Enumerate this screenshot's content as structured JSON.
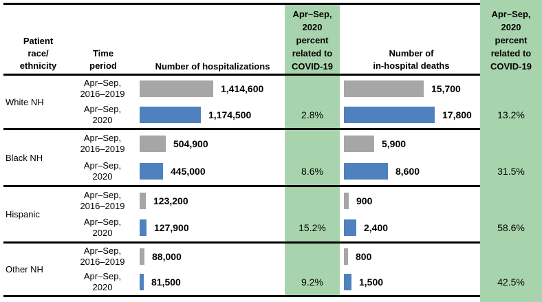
{
  "colors": {
    "bar_prior": "#A6A6A6",
    "bar_2020": "#4E81BD",
    "highlight": "#A8D4AD",
    "border": "#000000"
  },
  "header": {
    "race": [
      "Patient",
      "race/",
      "ethnicity"
    ],
    "time": [
      "Time",
      "period"
    ],
    "hosp": "Number of hospitalizations",
    "hosp_pct": [
      "Apr–Sep,",
      "2020",
      "percent",
      "related to",
      "COVID-19"
    ],
    "deaths": [
      "Number of",
      "in-hospital deaths"
    ],
    "deaths_pct": [
      "Apr–Sep,",
      "2020",
      "percent",
      "related to",
      "COVID-19"
    ]
  },
  "sections": [
    {
      "race": "White NH",
      "hosp_pct": "2.8%",
      "deaths_pct": "13.2%",
      "rows": [
        {
          "period1": "Apr–Sep,",
          "period2": "2016–2019",
          "hosp_value": 1414600,
          "hosp_label": "1,414,600",
          "deaths_value": 15700,
          "deaths_label": "15,700"
        },
        {
          "period1": "Apr–Sep,",
          "period2": "2020",
          "hosp_value": 1174500,
          "hosp_label": "1,174,500",
          "deaths_value": 17800,
          "deaths_label": "17,800"
        }
      ]
    },
    {
      "race": "Black NH",
      "hosp_pct": "8.6%",
      "deaths_pct": "31.5%",
      "rows": [
        {
          "period1": "Apr–Sep,",
          "period2": "2016–2019",
          "hosp_value": 504900,
          "hosp_label": "504,900",
          "deaths_value": 5900,
          "deaths_label": "5,900"
        },
        {
          "period1": "Apr–Sep,",
          "period2": "2020",
          "hosp_value": 445000,
          "hosp_label": "445,000",
          "deaths_value": 8600,
          "deaths_label": "8,600"
        }
      ]
    },
    {
      "race": "Hispanic",
      "hosp_pct": "15.2%",
      "deaths_pct": "58.6%",
      "rows": [
        {
          "period1": "Apr–Sep,",
          "period2": "2016–2019",
          "hosp_value": 123200,
          "hosp_label": "123,200",
          "deaths_value": 900,
          "deaths_label": "900"
        },
        {
          "period1": "Apr–Sep,",
          "period2": "2020",
          "hosp_value": 127900,
          "hosp_label": "127,900",
          "deaths_value": 2400,
          "deaths_label": "2,400"
        }
      ]
    },
    {
      "race": "Other NH",
      "hosp_pct": "9.2%",
      "deaths_pct": "42.5%",
      "rows": [
        {
          "period1": "Apr–Sep,",
          "period2": "2016–2019",
          "hosp_value": 88000,
          "hosp_label": "88,000",
          "deaths_value": 800,
          "deaths_label": "800"
        },
        {
          "period1": "Apr–Sep,",
          "period2": "2020",
          "hosp_value": 81500,
          "hosp_label": "81,500",
          "deaths_value": 1500,
          "deaths_label": "1,500"
        }
      ]
    }
  ],
  "chart_data": [
    {
      "type": "bar",
      "title": "Number of hospitalizations",
      "categories": [
        "White NH",
        "Black NH",
        "Hispanic",
        "Other NH"
      ],
      "series": [
        {
          "name": "Apr–Sep, 2016–2019",
          "values": [
            1414600,
            504900,
            123200,
            88000
          ]
        },
        {
          "name": "Apr–Sep, 2020",
          "values": [
            1174500,
            445000,
            127900,
            81500
          ]
        }
      ],
      "annotations": {
        "apr_sep_2020_percent_related_to_covid19": [
          "2.8%",
          "8.6%",
          "15.2%",
          "9.2%"
        ]
      }
    },
    {
      "type": "bar",
      "title": "Number of in-hospital deaths",
      "categories": [
        "White NH",
        "Black NH",
        "Hispanic",
        "Other NH"
      ],
      "series": [
        {
          "name": "Apr–Sep, 2016–2019",
          "values": [
            15700,
            5900,
            900,
            800
          ]
        },
        {
          "name": "Apr–Sep, 2020",
          "values": [
            17800,
            8600,
            2400,
            1500
          ]
        }
      ],
      "annotations": {
        "apr_sep_2020_percent_related_to_covid19": [
          "13.2%",
          "31.5%",
          "58.6%",
          "42.5%"
        ]
      }
    }
  ]
}
